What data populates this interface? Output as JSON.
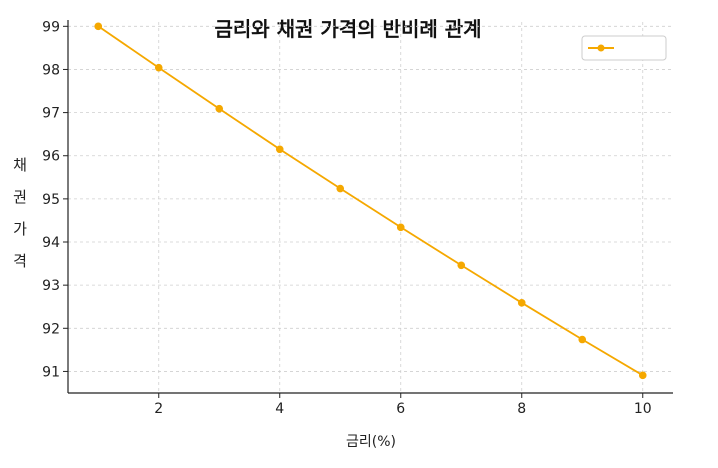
{
  "chart_data": {
    "type": "line",
    "title": "금리와 채권 가격의 반비례 관계",
    "xlabel": "금리(%)",
    "ylabel": "채권 가격",
    "xlim": [
      0.5,
      10.5
    ],
    "ylim": [
      90.5,
      99.1
    ],
    "x_ticks": [
      "2",
      "4",
      "6",
      "8",
      "10"
    ],
    "y_ticks": [
      "91",
      "92",
      "93",
      "94",
      "95",
      "96",
      "97",
      "98",
      "99"
    ],
    "grid": true,
    "legend_position": "top-right",
    "series": [
      {
        "color": "#F5A800",
        "x": [
          1,
          2,
          3,
          4,
          5,
          6,
          7,
          8,
          9,
          10
        ],
        "values": [
          99.0,
          98.04,
          97.09,
          96.15,
          95.24,
          94.34,
          93.46,
          92.59,
          91.74,
          90.91
        ]
      }
    ]
  }
}
